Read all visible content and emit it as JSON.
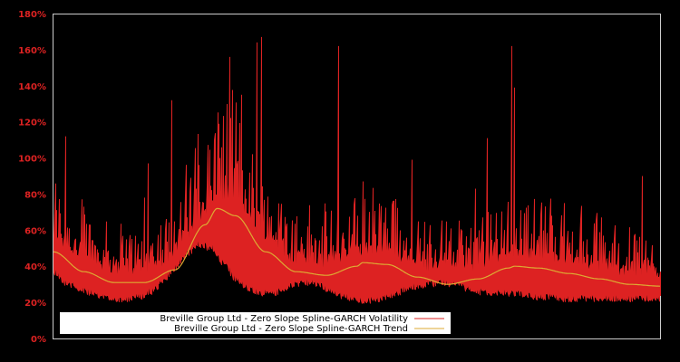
{
  "chart_data": {
    "type": "line",
    "title": "",
    "xlabel": "",
    "ylabel": "",
    "ylim": [
      0,
      180
    ],
    "y_ticks": [
      "0%",
      "20%",
      "40%",
      "60%",
      "80%",
      "100%",
      "120%",
      "140%",
      "160%",
      "180%"
    ],
    "x_ticks": [],
    "grid": false,
    "legend_position": "lower-left inside plot",
    "background": "#000000",
    "axis_color": "#cccccc",
    "tick_label_color": "#dd2222",
    "series": [
      {
        "name": "Breville Group Ltd - Zero Slope Spline-GARCH Volatility",
        "color": "#dd2222",
        "style": "dense spiky line",
        "x": [
          0,
          0.02,
          0.04,
          0.06,
          0.08,
          0.1,
          0.12,
          0.14,
          0.16,
          0.18,
          0.2,
          0.22,
          0.24,
          0.26,
          0.28,
          0.3,
          0.32,
          0.34,
          0.36,
          0.38,
          0.4,
          0.42,
          0.44,
          0.46,
          0.48,
          0.5,
          0.52,
          0.54,
          0.56,
          0.58,
          0.6,
          0.62,
          0.64,
          0.66,
          0.68,
          0.7,
          0.72,
          0.74,
          0.76,
          0.78,
          0.8,
          0.82,
          0.84,
          0.86,
          0.88,
          0.9,
          0.92,
          0.94,
          0.96,
          0.98,
          1.0
        ],
        "baseline": [
          40,
          34,
          31,
          28,
          26,
          25,
          25,
          26,
          29,
          34,
          42,
          50,
          55,
          53,
          45,
          36,
          31,
          28,
          28,
          30,
          33,
          34,
          32,
          29,
          26,
          24,
          24,
          25,
          27,
          30,
          32,
          33,
          34,
          33,
          31,
          29,
          28,
          28,
          28,
          27,
          26,
          26,
          25,
          25,
          25,
          25,
          25,
          25,
          25,
          25,
          25
        ],
        "notable_spikes": [
          {
            "x_frac": 0.02,
            "value": 112
          },
          {
            "x_frac": 0.05,
            "value": 73
          },
          {
            "x_frac": 0.15,
            "value": 78
          },
          {
            "x_frac": 0.155,
            "value": 97
          },
          {
            "x_frac": 0.195,
            "value": 132
          },
          {
            "x_frac": 0.225,
            "value": 89
          },
          {
            "x_frac": 0.265,
            "value": 110
          },
          {
            "x_frac": 0.29,
            "value": 156
          },
          {
            "x_frac": 0.31,
            "value": 135
          },
          {
            "x_frac": 0.335,
            "value": 164
          },
          {
            "x_frac": 0.342,
            "value": 167
          },
          {
            "x_frac": 0.47,
            "value": 162
          },
          {
            "x_frac": 0.51,
            "value": 87
          },
          {
            "x_frac": 0.59,
            "value": 99
          },
          {
            "x_frac": 0.695,
            "value": 83
          },
          {
            "x_frac": 0.715,
            "value": 111
          },
          {
            "x_frac": 0.755,
            "value": 162
          },
          {
            "x_frac": 0.76,
            "value": 139
          },
          {
            "x_frac": 0.82,
            "value": 68
          },
          {
            "x_frac": 0.97,
            "value": 90
          }
        ]
      },
      {
        "name": "Breville Group Ltd - Zero Slope Spline-GARCH Trend",
        "color": "#ddaa33",
        "style": "smooth line",
        "x": [
          0,
          0.05,
          0.1,
          0.15,
          0.2,
          0.25,
          0.27,
          0.3,
          0.35,
          0.4,
          0.45,
          0.5,
          0.51,
          0.55,
          0.6,
          0.65,
          0.7,
          0.75,
          0.76,
          0.8,
          0.85,
          0.9,
          0.95,
          1.0
        ],
        "values": [
          48,
          37,
          31,
          31,
          38,
          63,
          72,
          68,
          48,
          37,
          35,
          40,
          42,
          41,
          34,
          30,
          33,
          39,
          40,
          39,
          36,
          33,
          30,
          29
        ]
      }
    ]
  },
  "legend": {
    "items": [
      {
        "label": "Breville Group Ltd - Zero Slope Spline-GARCH Volatility",
        "color": "#dd2222"
      },
      {
        "label": "Breville Group Ltd - Zero Slope Spline-GARCH Trend",
        "color": "#ddaa33"
      }
    ]
  }
}
